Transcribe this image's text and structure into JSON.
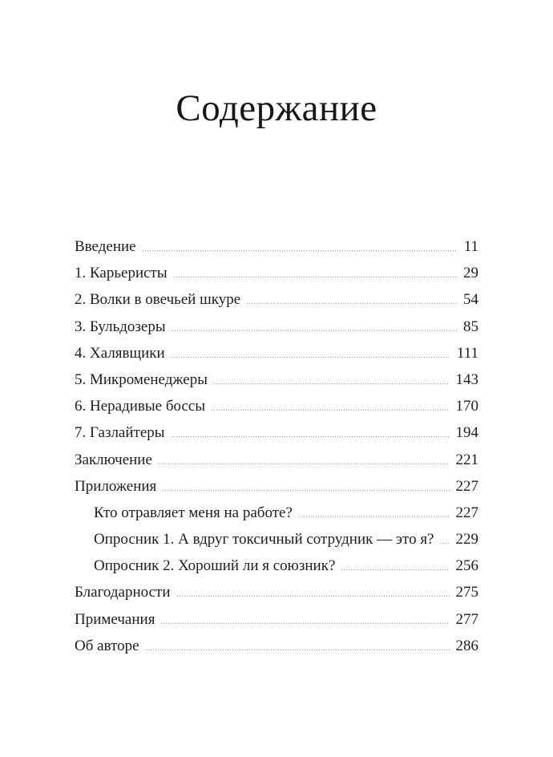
{
  "page_title": "Содержание",
  "toc": {
    "entries": [
      {
        "label": "Введение",
        "page": "11",
        "indent": false
      },
      {
        "label": "1. Карьеристы",
        "page": "29",
        "indent": false
      },
      {
        "label": "2. Волки в овечьей шкуре",
        "page": "54",
        "indent": false
      },
      {
        "label": "3. Бульдозеры",
        "page": "85",
        "indent": false
      },
      {
        "label": "4. Халявщики",
        "page": "111",
        "indent": false
      },
      {
        "label": "5. Микроменеджеры",
        "page": "143",
        "indent": false
      },
      {
        "label": "6. Нерадивые боссы",
        "page": "170",
        "indent": false
      },
      {
        "label": "7. Газлайтеры",
        "page": "194",
        "indent": false
      },
      {
        "label": "Заключение",
        "page": "221",
        "indent": false
      },
      {
        "label": "Приложения",
        "page": "227",
        "indent": false
      },
      {
        "label": "Кто отравляет меня на работе?",
        "page": "227",
        "indent": true
      },
      {
        "label": "Опросник 1. А вдруг токсичный сотрудник — это я?",
        "page": "229",
        "indent": true
      },
      {
        "label": "Опросник 2. Хороший ли я союзник?",
        "page": "256",
        "indent": true
      },
      {
        "label": "Благодарности",
        "page": "275",
        "indent": false
      },
      {
        "label": "Примечания",
        "page": "277",
        "indent": false
      },
      {
        "label": "Об авторе",
        "page": "286",
        "indent": false
      }
    ]
  },
  "colors": {
    "background": "#ffffff",
    "text": "#1d1d1d",
    "leader_dots": "#9a9a9a"
  }
}
